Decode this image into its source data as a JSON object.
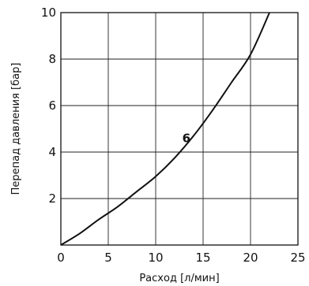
{
  "chart_data": {
    "type": "line",
    "xlabel": "Расход [л/мин]",
    "ylabel": "Перепад давления [бар]",
    "xlim": [
      0,
      25
    ],
    "ylim": [
      0,
      10
    ],
    "x_ticks": [
      "0",
      "5",
      "10",
      "15",
      "20",
      "25"
    ],
    "y_ticks": [
      "2",
      "4",
      "6",
      "8",
      "10"
    ],
    "grid": true,
    "series": [
      {
        "name": "6",
        "x": [
          0,
          2,
          4,
          6,
          8,
          10,
          12,
          14,
          16,
          18,
          20,
          22
        ],
        "y": [
          0,
          0.5,
          1.1,
          1.65,
          2.3,
          2.95,
          3.75,
          4.7,
          5.8,
          7.0,
          8.2,
          10.0
        ]
      }
    ],
    "annotations": [
      {
        "text": "6",
        "x": 12.8,
        "y": 4.6
      }
    ],
    "line_color": "#111111"
  }
}
